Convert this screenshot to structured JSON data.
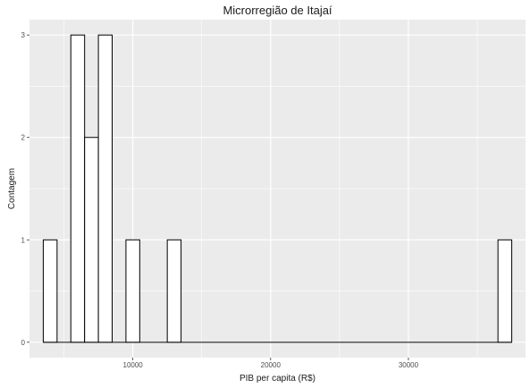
{
  "chart_data": {
    "type": "bar",
    "title": "Microrregião de  Itajaí",
    "xlabel": "PIB per capita (R$)",
    "ylabel": "Contagem",
    "xlim": [
      2500,
      38500
    ],
    "ylim": [
      -0.15,
      3.15
    ],
    "x_ticks": [
      10000,
      20000,
      30000
    ],
    "x_tick_labels": [
      "10000",
      "20000",
      "30000"
    ],
    "y_ticks": [
      0,
      1,
      2,
      3
    ],
    "y_tick_labels": [
      "0",
      "1",
      "2",
      "3"
    ],
    "grid": true,
    "bin_width": 1000,
    "bars": [
      {
        "x0": 3500,
        "x1": 4500,
        "count": 1
      },
      {
        "x0": 5500,
        "x1": 6500,
        "count": 3
      },
      {
        "x0": 6500,
        "x1": 7500,
        "count": 2
      },
      {
        "x0": 7500,
        "x1": 8500,
        "count": 3
      },
      {
        "x0": 9500,
        "x1": 10500,
        "count": 1
      },
      {
        "x0": 12500,
        "x1": 13500,
        "count": 1
      },
      {
        "x0": 36500,
        "x1": 37500,
        "count": 1
      }
    ],
    "colors": {
      "panel": "#ebebeb",
      "grid": "#ffffff",
      "bar_fill": "#ffffff",
      "bar_stroke": "#000000"
    }
  }
}
